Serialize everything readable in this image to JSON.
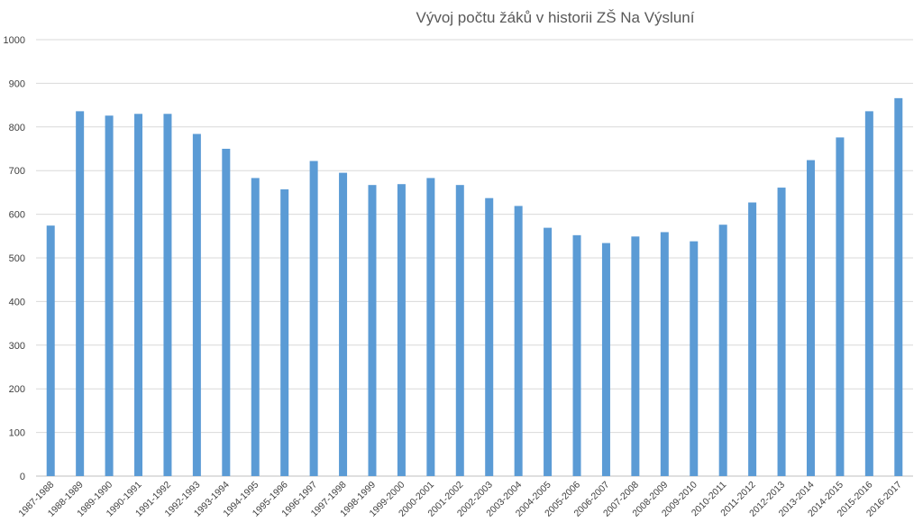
{
  "chart_data": {
    "type": "bar",
    "title": "Vývoj počtu žáků v historii ZŠ Na Výsluní",
    "xlabel": "",
    "ylabel": "",
    "ylim": [
      0,
      1000
    ],
    "yticks": [
      0,
      100,
      200,
      300,
      400,
      500,
      600,
      700,
      800,
      900,
      1000
    ],
    "grid": true,
    "legend": "none",
    "bar_color": "#5b9bd5",
    "categories": [
      "1987-1988",
      "1988-1989",
      "1989-1990",
      "1990-1991",
      "1991-1992",
      "1992-1993",
      "1993-1994",
      "1994-1995",
      "1995-1996",
      "1996-1997",
      "1997-1998",
      "1998-1999",
      "1999-2000",
      "2000-2001",
      "2001-2002",
      "2002-2003",
      "2003-2004",
      "2004-2005",
      "2005-2006",
      "2006-2007",
      "2007-2008",
      "2008-2009",
      "2009-2010",
      "2010-2011",
      "2011-2012",
      "2012-2013",
      "2013-2014",
      "2014-2015",
      "2015-2016",
      "2016-2017"
    ],
    "values": [
      574,
      836,
      826,
      830,
      830,
      784,
      750,
      683,
      657,
      722,
      695,
      667,
      669,
      683,
      667,
      637,
      619,
      569,
      552,
      534,
      549,
      559,
      538,
      576,
      627,
      661,
      724,
      776,
      836,
      866
    ]
  }
}
